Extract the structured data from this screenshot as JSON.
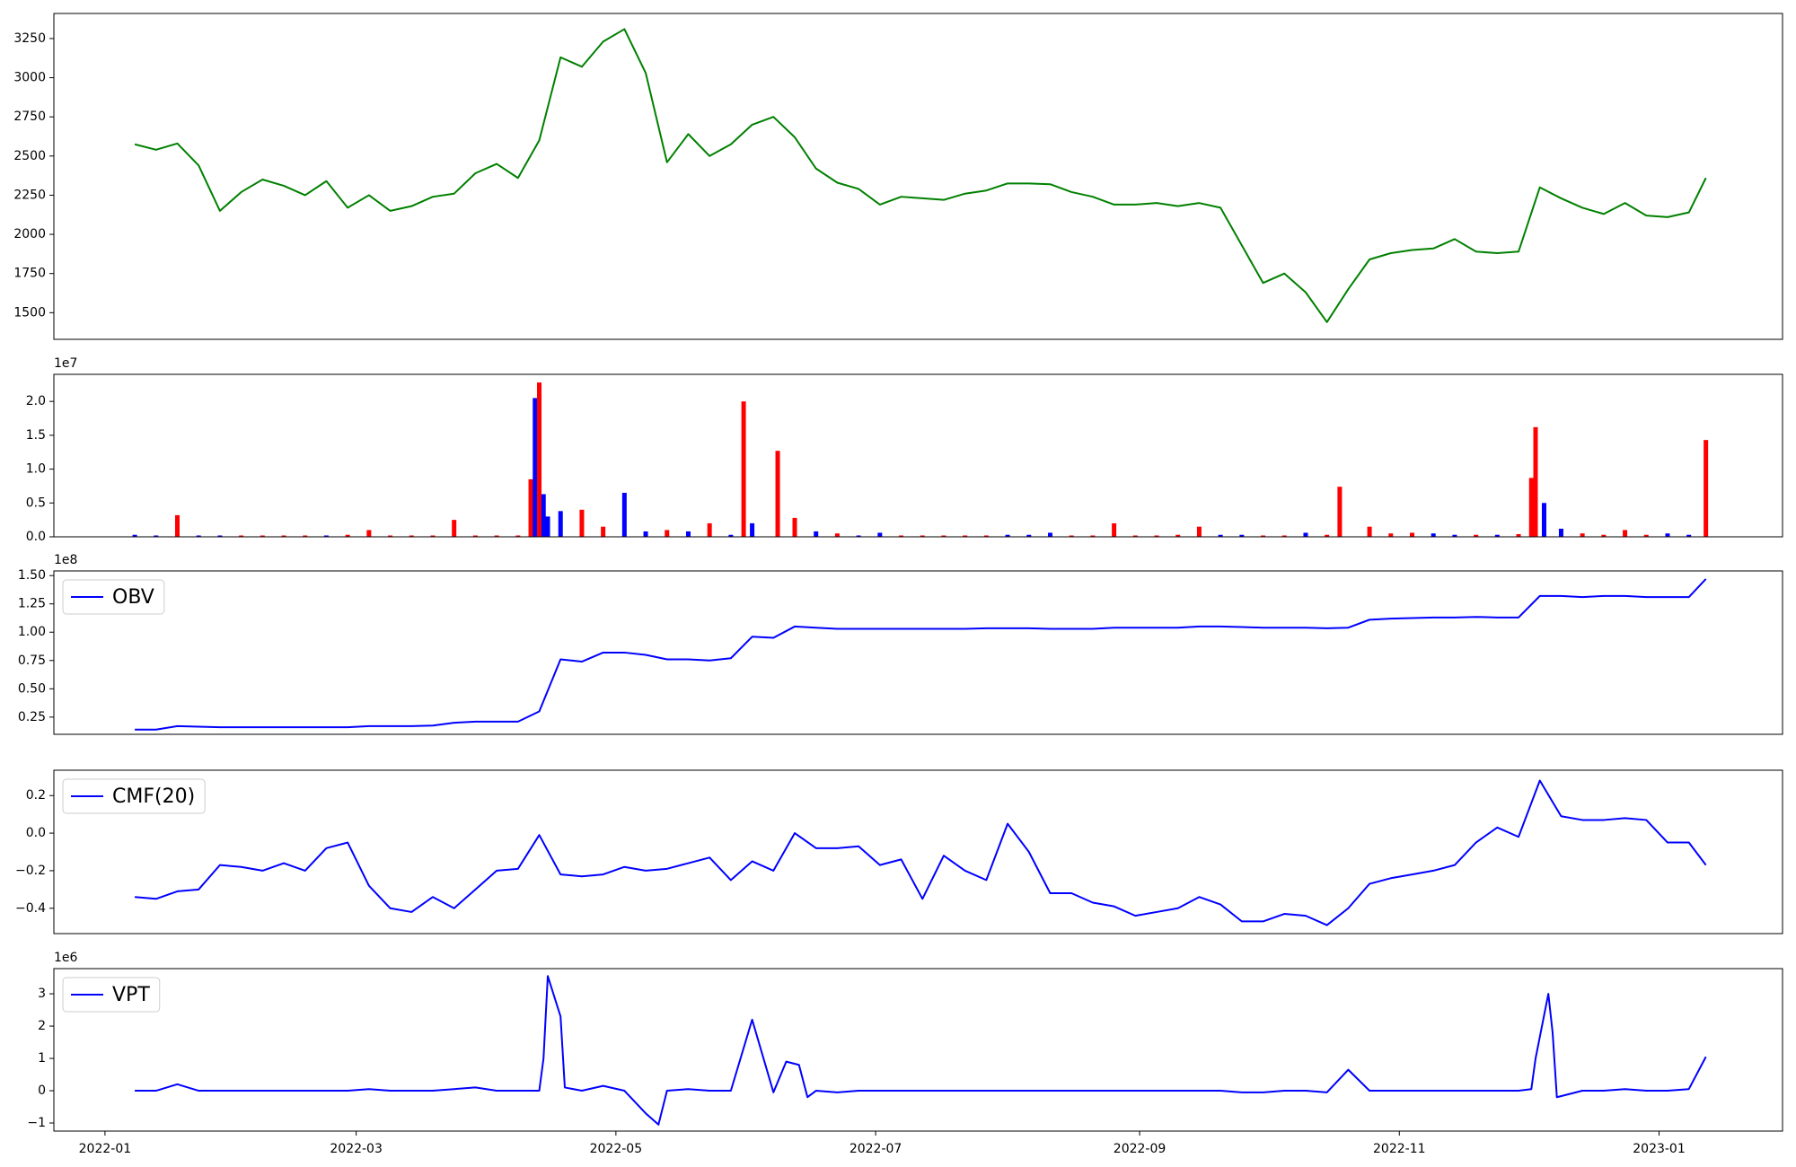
{
  "chart_data": [
    {
      "type": "line",
      "color": "#008000",
      "xlim": [
        "2021-12-20",
        "2023-01-30"
      ],
      "ylim": [
        1330,
        3410
      ],
      "yticks": [
        1500,
        1750,
        2000,
        2250,
        2500,
        2750,
        3000,
        3250
      ],
      "x": [
        "2022-01-08",
        "2022-01-13",
        "2022-01-18",
        "2022-01-23",
        "2022-01-28",
        "2022-02-02",
        "2022-02-07",
        "2022-02-12",
        "2022-02-17",
        "2022-02-22",
        "2022-02-27",
        "2022-03-04",
        "2022-03-09",
        "2022-03-14",
        "2022-03-19",
        "2022-03-24",
        "2022-03-29",
        "2022-04-03",
        "2022-04-08",
        "2022-04-13",
        "2022-04-18",
        "2022-04-23",
        "2022-04-28",
        "2022-05-03",
        "2022-05-08",
        "2022-05-13",
        "2022-05-18",
        "2022-05-23",
        "2022-05-28",
        "2022-06-02",
        "2022-06-07",
        "2022-06-12",
        "2022-06-17",
        "2022-06-22",
        "2022-06-27",
        "2022-07-02",
        "2022-07-07",
        "2022-07-12",
        "2022-07-17",
        "2022-07-22",
        "2022-07-27",
        "2022-08-01",
        "2022-08-06",
        "2022-08-11",
        "2022-08-16",
        "2022-08-21",
        "2022-08-26",
        "2022-08-31",
        "2022-09-05",
        "2022-09-10",
        "2022-09-15",
        "2022-09-20",
        "2022-09-25",
        "2022-09-30",
        "2022-10-05",
        "2022-10-10",
        "2022-10-15",
        "2022-10-20",
        "2022-10-25",
        "2022-10-30",
        "2022-11-04",
        "2022-11-09",
        "2022-11-14",
        "2022-11-19",
        "2022-11-24",
        "2022-11-29",
        "2022-12-04",
        "2022-12-09",
        "2022-12-14",
        "2022-12-19",
        "2022-12-24",
        "2022-12-29",
        "2023-01-03",
        "2023-01-08",
        "2023-01-12"
      ],
      "values": [
        2575,
        2540,
        2580,
        2440,
        2150,
        2270,
        2350,
        2310,
        2250,
        2340,
        2170,
        2250,
        2150,
        2180,
        2240,
        2260,
        2390,
        2450,
        2360,
        2600,
        3130,
        3070,
        3230,
        3310,
        3030,
        2460,
        2640,
        2500,
        2575,
        2700,
        2750,
        2620,
        2420,
        2330,
        2290,
        2190,
        2240,
        2230,
        2220,
        2260,
        2280,
        2325,
        2325,
        2320,
        2270,
        2240,
        2190,
        2190,
        2200,
        2180,
        2200,
        2170,
        1930,
        1690,
        1750,
        1630,
        1440,
        1650,
        1840,
        1880,
        1900,
        1910,
        1970,
        1890,
        1880,
        1890,
        2300,
        2230,
        2170,
        2130,
        2200,
        2120,
        2110,
        2140,
        2360
      ]
    },
    {
      "type": "bar",
      "xlim": [
        "2021-12-20",
        "2023-01-30"
      ],
      "ylim": [
        0,
        2.4
      ],
      "y_offset_label": "1e7",
      "yticks": [
        {
          "value": 0,
          "label": "0.0"
        },
        0.5,
        {
          "value": 1,
          "label": "1.0"
        },
        1.5,
        {
          "value": 2,
          "label": "2.0"
        }
      ],
      "x": [
        "2022-01-08",
        "2022-01-13",
        "2022-01-18",
        "2022-01-23",
        "2022-01-28",
        "2022-02-02",
        "2022-02-07",
        "2022-02-12",
        "2022-02-17",
        "2022-02-22",
        "2022-02-27",
        "2022-03-04",
        "2022-03-09",
        "2022-03-14",
        "2022-03-19",
        "2022-03-24",
        "2022-03-29",
        "2022-04-03",
        "2022-04-08",
        "2022-04-11",
        "2022-04-12",
        "2022-04-13",
        "2022-04-14",
        "2022-04-15",
        "2022-04-18",
        "2022-04-23",
        "2022-04-28",
        "2022-05-03",
        "2022-05-08",
        "2022-05-13",
        "2022-05-18",
        "2022-05-23",
        "2022-05-28",
        "2022-05-31",
        "2022-06-02",
        "2022-06-08",
        "2022-06-12",
        "2022-06-17",
        "2022-06-22",
        "2022-06-27",
        "2022-07-02",
        "2022-07-07",
        "2022-07-12",
        "2022-07-17",
        "2022-07-22",
        "2022-07-27",
        "2022-08-01",
        "2022-08-06",
        "2022-08-11",
        "2022-08-16",
        "2022-08-21",
        "2022-08-26",
        "2022-08-31",
        "2022-09-05",
        "2022-09-10",
        "2022-09-15",
        "2022-09-20",
        "2022-09-25",
        "2022-09-30",
        "2022-10-05",
        "2022-10-10",
        "2022-10-15",
        "2022-10-18",
        "2022-10-25",
        "2022-10-30",
        "2022-11-04",
        "2022-11-09",
        "2022-11-14",
        "2022-11-19",
        "2022-11-24",
        "2022-11-29",
        "2022-12-02",
        "2022-12-03",
        "2022-12-05",
        "2022-12-09",
        "2022-12-14",
        "2022-12-19",
        "2022-12-24",
        "2022-12-29",
        "2023-01-03",
        "2023-01-08",
        "2023-01-12"
      ],
      "values": [
        0.03,
        0.02,
        0.32,
        0.02,
        0.02,
        0.02,
        0.02,
        0.02,
        0.02,
        0.02,
        0.03,
        0.1,
        0.02,
        0.02,
        0.02,
        0.25,
        0.02,
        0.02,
        0.02,
        0.85,
        2.05,
        2.28,
        0.63,
        0.3,
        0.38,
        0.4,
        0.15,
        0.65,
        0.08,
        0.1,
        0.08,
        0.2,
        0.03,
        2.0,
        0.2,
        1.27,
        0.28,
        0.08,
        0.05,
        0.02,
        0.06,
        0.02,
        0.02,
        0.02,
        0.02,
        0.02,
        0.03,
        0.03,
        0.06,
        0.02,
        0.02,
        0.2,
        0.02,
        0.02,
        0.03,
        0.15,
        0.03,
        0.03,
        0.02,
        0.02,
        0.06,
        0.03,
        0.74,
        0.15,
        0.05,
        0.06,
        0.05,
        0.03,
        0.03,
        0.03,
        0.04,
        0.87,
        1.62,
        0.5,
        0.12,
        0.05,
        0.03,
        0.1,
        0.03,
        0.05,
        0.03,
        1.43
      ],
      "colors": [
        "blue",
        "blue",
        "red",
        "blue",
        "blue",
        "red",
        "red",
        "red",
        "red",
        "blue",
        "red",
        "red",
        "red",
        "red",
        "red",
        "red",
        "red",
        "red",
        "red",
        "red",
        "blue",
        "red",
        "blue",
        "blue",
        "blue",
        "red",
        "red",
        "blue",
        "blue",
        "red",
        "blue",
        "red",
        "blue",
        "red",
        "blue",
        "red",
        "red",
        "blue",
        "red",
        "blue",
        "blue",
        "red",
        "red",
        "red",
        "red",
        "red",
        "blue",
        "blue",
        "blue",
        "red",
        "red",
        "red",
        "red",
        "red",
        "red",
        "red",
        "blue",
        "blue",
        "red",
        "red",
        "blue",
        "red",
        "red",
        "red",
        "red",
        "red",
        "blue",
        "blue",
        "red",
        "blue",
        "red",
        "red",
        "red",
        "blue",
        "blue",
        "red",
        "red",
        "red",
        "red",
        "blue",
        "blue",
        "red"
      ]
    },
    {
      "type": "line",
      "xlim": [
        "2021-12-20",
        "2023-01-30"
      ],
      "ylim": [
        0.098,
        1.541
      ],
      "y_offset_label": "1e8",
      "legend": "upper left",
      "yticks": [
        0.25,
        {
          "value": 0.5,
          "label": "0.50"
        },
        0.75,
        {
          "value": 1,
          "label": "1.00"
        },
        1.25,
        {
          "value": 1.5,
          "label": "1.50"
        }
      ],
      "x": [
        "2022-01-08",
        "2022-01-13",
        "2022-01-18",
        "2022-01-23",
        "2022-01-28",
        "2022-02-02",
        "2022-02-07",
        "2022-02-12",
        "2022-02-17",
        "2022-02-22",
        "2022-02-27",
        "2022-03-04",
        "2022-03-09",
        "2022-03-14",
        "2022-03-19",
        "2022-03-24",
        "2022-03-29",
        "2022-04-03",
        "2022-04-08",
        "2022-04-13",
        "2022-04-18",
        "2022-04-23",
        "2022-04-28",
        "2022-05-03",
        "2022-05-08",
        "2022-05-13",
        "2022-05-18",
        "2022-05-23",
        "2022-05-28",
        "2022-06-02",
        "2022-06-07",
        "2022-06-12",
        "2022-06-17",
        "2022-06-22",
        "2022-06-27",
        "2022-07-02",
        "2022-07-07",
        "2022-07-12",
        "2022-07-17",
        "2022-07-22",
        "2022-07-27",
        "2022-08-01",
        "2022-08-06",
        "2022-08-11",
        "2022-08-16",
        "2022-08-21",
        "2022-08-26",
        "2022-08-31",
        "2022-09-05",
        "2022-09-10",
        "2022-09-15",
        "2022-09-20",
        "2022-09-25",
        "2022-09-30",
        "2022-10-05",
        "2022-10-10",
        "2022-10-15",
        "2022-10-20",
        "2022-10-25",
        "2022-10-30",
        "2022-11-04",
        "2022-11-09",
        "2022-11-14",
        "2022-11-19",
        "2022-11-24",
        "2022-11-29",
        "2022-12-04",
        "2022-12-09",
        "2022-12-14",
        "2022-12-19",
        "2022-12-24",
        "2022-12-29",
        "2023-01-03",
        "2023-01-08",
        "2023-01-12"
      ],
      "series": [
        {
          "name": "OBV",
          "color": "blue",
          "values": [
            0.14,
            0.14,
            0.17,
            0.165,
            0.16,
            0.16,
            0.16,
            0.16,
            0.16,
            0.16,
            0.16,
            0.17,
            0.17,
            0.17,
            0.175,
            0.2,
            0.21,
            0.21,
            0.21,
            0.3,
            0.76,
            0.74,
            0.82,
            0.82,
            0.8,
            0.76,
            0.76,
            0.75,
            0.77,
            0.96,
            0.95,
            1.05,
            1.04,
            1.03,
            1.03,
            1.03,
            1.03,
            1.03,
            1.03,
            1.03,
            1.035,
            1.035,
            1.035,
            1.03,
            1.03,
            1.03,
            1.04,
            1.04,
            1.04,
            1.04,
            1.05,
            1.05,
            1.045,
            1.04,
            1.04,
            1.04,
            1.035,
            1.04,
            1.11,
            1.12,
            1.125,
            1.13,
            1.13,
            1.135,
            1.13,
            1.13,
            1.32,
            1.32,
            1.31,
            1.32,
            1.32,
            1.31,
            1.31,
            1.31,
            1.47
          ]
        }
      ]
    },
    {
      "type": "line",
      "xlim": [
        "2021-12-20",
        "2023-01-30"
      ],
      "ylim": [
        -0.535,
        0.335
      ],
      "legend": "upper left",
      "yticks": [
        {
          "value": -0.4,
          "label": "−0.4"
        },
        {
          "value": -0.2,
          "label": "−0.2"
        },
        {
          "value": 0,
          "label": "0.0"
        },
        0.2
      ],
      "x": [
        "2022-01-08",
        "2022-01-13",
        "2022-01-18",
        "2022-01-23",
        "2022-01-28",
        "2022-02-02",
        "2022-02-07",
        "2022-02-12",
        "2022-02-17",
        "2022-02-22",
        "2022-02-27",
        "2022-03-04",
        "2022-03-09",
        "2022-03-14",
        "2022-03-19",
        "2022-03-24",
        "2022-03-29",
        "2022-04-03",
        "2022-04-08",
        "2022-04-13",
        "2022-04-18",
        "2022-04-23",
        "2022-04-28",
        "2022-05-03",
        "2022-05-08",
        "2022-05-13",
        "2022-05-18",
        "2022-05-23",
        "2022-05-28",
        "2022-06-02",
        "2022-06-07",
        "2022-06-12",
        "2022-06-17",
        "2022-06-22",
        "2022-06-27",
        "2022-07-02",
        "2022-07-07",
        "2022-07-12",
        "2022-07-17",
        "2022-07-22",
        "2022-07-27",
        "2022-08-01",
        "2022-08-06",
        "2022-08-11",
        "2022-08-16",
        "2022-08-21",
        "2022-08-26",
        "2022-08-31",
        "2022-09-05",
        "2022-09-10",
        "2022-09-15",
        "2022-09-20",
        "2022-09-25",
        "2022-09-30",
        "2022-10-05",
        "2022-10-10",
        "2022-10-15",
        "2022-10-20",
        "2022-10-25",
        "2022-10-30",
        "2022-11-04",
        "2022-11-09",
        "2022-11-14",
        "2022-11-19",
        "2022-11-24",
        "2022-11-29",
        "2022-12-04",
        "2022-12-09",
        "2022-12-14",
        "2022-12-19",
        "2022-12-24",
        "2022-12-29",
        "2023-01-03",
        "2023-01-08",
        "2023-01-12"
      ],
      "series": [
        {
          "name": "CMF(20)",
          "color": "blue",
          "values": [
            -0.34,
            -0.35,
            -0.31,
            -0.3,
            -0.17,
            -0.18,
            -0.2,
            -0.16,
            -0.2,
            -0.08,
            -0.05,
            -0.28,
            -0.4,
            -0.42,
            -0.34,
            -0.4,
            -0.3,
            -0.2,
            -0.19,
            -0.01,
            -0.22,
            -0.23,
            -0.22,
            -0.18,
            -0.2,
            -0.19,
            -0.16,
            -0.13,
            -0.25,
            -0.15,
            -0.2,
            0.0,
            -0.08,
            -0.08,
            -0.07,
            -0.17,
            -0.14,
            -0.35,
            -0.12,
            -0.2,
            -0.25,
            0.05,
            -0.1,
            -0.32,
            -0.32,
            -0.37,
            -0.39,
            -0.44,
            -0.42,
            -0.4,
            -0.34,
            -0.38,
            -0.47,
            -0.47,
            -0.43,
            -0.44,
            -0.49,
            -0.4,
            -0.27,
            -0.24,
            -0.22,
            -0.2,
            -0.17,
            -0.05,
            0.03,
            -0.02,
            0.28,
            0.09,
            0.07,
            0.07,
            0.08,
            0.07,
            -0.05,
            -0.05,
            -0.17
          ]
        }
      ]
    },
    {
      "type": "line",
      "xlim": [
        "2021-12-20",
        "2023-01-30"
      ],
      "ylim": [
        -1.25,
        3.78
      ],
      "y_offset_label": "1e6",
      "legend": "upper left",
      "yticks": [
        {
          "value": -1,
          "label": "−1"
        },
        0,
        1,
        2,
        3
      ],
      "xticks": [
        "2022-01",
        "2022-03",
        "2022-05",
        "2022-07",
        "2022-09",
        "2022-11",
        "2023-01"
      ],
      "x": [
        "2022-01-08",
        "2022-01-13",
        "2022-01-18",
        "2022-01-23",
        "2022-01-28",
        "2022-02-02",
        "2022-02-07",
        "2022-02-12",
        "2022-02-17",
        "2022-02-22",
        "2022-02-27",
        "2022-03-04",
        "2022-03-09",
        "2022-03-14",
        "2022-03-19",
        "2022-03-24",
        "2022-03-29",
        "2022-04-03",
        "2022-04-08",
        "2022-04-13",
        "2022-04-14",
        "2022-04-15",
        "2022-04-18",
        "2022-04-19",
        "2022-04-23",
        "2022-04-28",
        "2022-05-03",
        "2022-05-08",
        "2022-05-11",
        "2022-05-13",
        "2022-05-18",
        "2022-05-23",
        "2022-05-28",
        "2022-06-02",
        "2022-06-07",
        "2022-06-10",
        "2022-06-13",
        "2022-06-15",
        "2022-06-17",
        "2022-06-22",
        "2022-06-27",
        "2022-07-02",
        "2022-07-07",
        "2022-07-12",
        "2022-07-17",
        "2022-07-22",
        "2022-07-27",
        "2022-08-01",
        "2022-08-06",
        "2022-08-11",
        "2022-08-16",
        "2022-08-21",
        "2022-08-26",
        "2022-08-31",
        "2022-09-05",
        "2022-09-10",
        "2022-09-15",
        "2022-09-20",
        "2022-09-25",
        "2022-09-30",
        "2022-10-05",
        "2022-10-10",
        "2022-10-15",
        "2022-10-20",
        "2022-10-25",
        "2022-10-30",
        "2022-11-04",
        "2022-11-09",
        "2022-11-14",
        "2022-11-19",
        "2022-11-24",
        "2022-11-29",
        "2022-12-02",
        "2022-12-03",
        "2022-12-06",
        "2022-12-07",
        "2022-12-08",
        "2022-12-14",
        "2022-12-19",
        "2022-12-24",
        "2022-12-29",
        "2023-01-03",
        "2023-01-08",
        "2023-01-12"
      ],
      "series": [
        {
          "name": "VPT",
          "color": "blue",
          "values": [
            0,
            0,
            0.2,
            0,
            0,
            0,
            0,
            0,
            0,
            0,
            0,
            0.05,
            0,
            0,
            0,
            0.05,
            0.1,
            0,
            0,
            0,
            1.0,
            3.55,
            2.3,
            0.1,
            0,
            0.15,
            0,
            -0.7,
            -1.05,
            0,
            0.05,
            0,
            0,
            2.2,
            -0.05,
            0.9,
            0.8,
            -0.2,
            0,
            -0.05,
            0,
            0,
            0,
            0,
            0,
            0,
            0,
            0,
            0,
            0,
            0,
            0,
            0,
            0,
            0,
            0,
            0,
            0,
            -0.05,
            -0.05,
            0,
            0,
            -0.05,
            0.65,
            0,
            0,
            0,
            0,
            0,
            0,
            0,
            0,
            0.05,
            1.0,
            3.0,
            1.8,
            -0.2,
            0,
            0,
            0.05,
            0,
            0,
            0.05,
            1.05
          ]
        }
      ]
    }
  ]
}
